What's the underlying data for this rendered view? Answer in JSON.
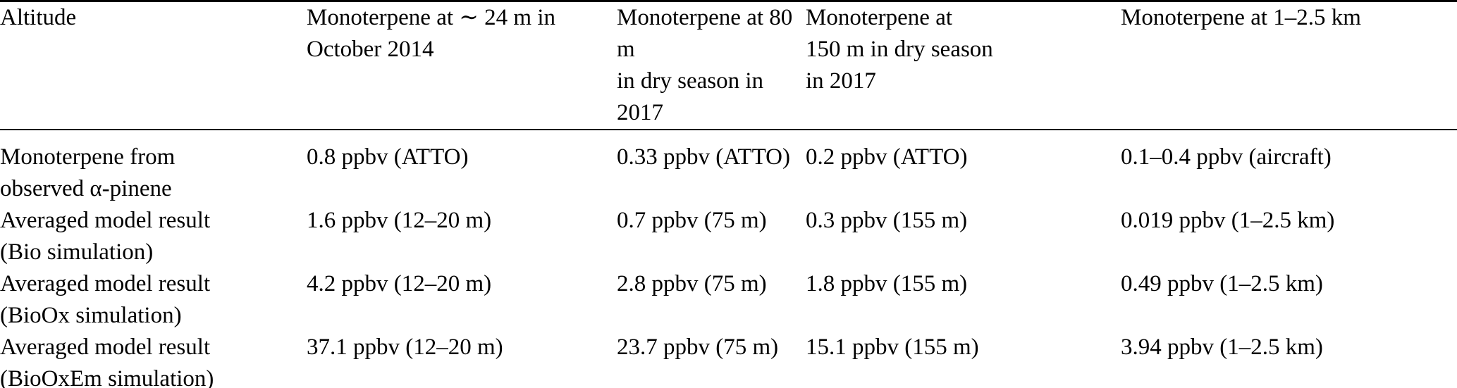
{
  "colors": {
    "text": "#000000",
    "background": "#ffffff",
    "rule": "#000000"
  },
  "table": {
    "columns": [
      {
        "header": "Altitude"
      },
      {
        "header": "Monoterpene at ∼ 24 m in\nOctober 2014"
      },
      {
        "header": "Monoterpene at 80 m\nin dry season in 2017"
      },
      {
        "header": "Monoterpene at\n150 m in dry season\nin 2017"
      },
      {
        "header": "Monoterpene at 1–2.5 km"
      }
    ],
    "rows": [
      {
        "label": "Monoterpene from\nobserved α-pinene",
        "values": [
          "0.8 ppbv (ATTO)",
          "0.33 ppbv (ATTO)",
          "0.2 ppbv (ATTO)",
          "0.1–0.4 ppbv (aircraft)"
        ]
      },
      {
        "label": "Averaged model result\n(Bio simulation)",
        "values": [
          "1.6 ppbv (12–20 m)",
          "0.7 ppbv (75 m)",
          "0.3 ppbv (155 m)",
          "0.019 ppbv (1–2.5 km)"
        ]
      },
      {
        "label": "Averaged model result\n(BioOx simulation)",
        "values": [
          "4.2 ppbv (12–20 m)",
          "2.8 ppbv (75 m)",
          "1.8 ppbv (155 m)",
          "0.49 ppbv (1–2.5 km)"
        ]
      },
      {
        "label": "Averaged model result\n(BioOxEm simulation)",
        "values": [
          "37.1 ppbv (12–20 m)",
          "23.7 ppbv (75 m)",
          "15.1 ppbv (155 m)",
          "3.94 ppbv (1–2.5 km)"
        ]
      }
    ]
  }
}
